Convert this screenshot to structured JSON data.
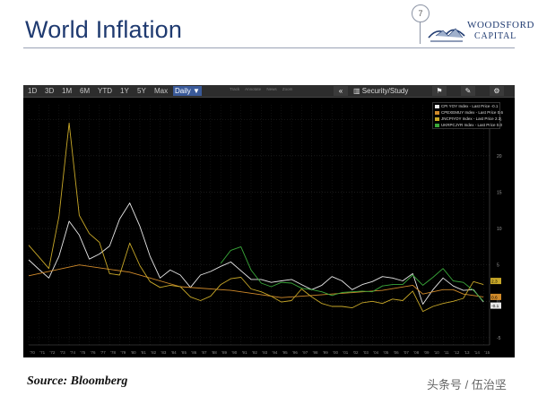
{
  "slide": {
    "title": "World Inflation",
    "page_number": "7",
    "logo_line1": "WOODSFORD",
    "logo_line2": "CAPITAL",
    "source": "Source: Bloomberg",
    "watermark": "头条号 / 伍治坚"
  },
  "toolbar": {
    "timeframes": [
      "1D",
      "3D",
      "1M",
      "6M",
      "YTD",
      "1Y",
      "5Y",
      "Max"
    ],
    "period": "Daily ▼",
    "tools": [
      "Track",
      "Annotate",
      "News",
      "Zoom"
    ],
    "collapse": "«",
    "security_study": "Security/Study",
    "icons": [
      "flag-icon",
      "edit-icon",
      "settings-icon"
    ]
  },
  "colors": {
    "white": "#e8e8e8",
    "orange": "#d08a2a",
    "yellow": "#c8a828",
    "green": "#3aa83a"
  },
  "chart_data": {
    "type": "line",
    "x_ticks": [
      "'70",
      "'71",
      "'72",
      "'73",
      "'74",
      "'75",
      "'76",
      "'77",
      "'78",
      "'79",
      "'80",
      "'81",
      "'82",
      "'83",
      "'84",
      "'85",
      "'86",
      "'87",
      "'88",
      "'89",
      "'90",
      "'91",
      "'92",
      "'93",
      "'94",
      "'95",
      "'96",
      "'97",
      "'98",
      "'99",
      "'00",
      "'01",
      "'02",
      "'03",
      "'04",
      "'05",
      "'06",
      "'07",
      "'08",
      "'09",
      "'10",
      "'11",
      "'12",
      "'13",
      "'14",
      "'15"
    ],
    "y_ticks": [
      25,
      20,
      15,
      10,
      5,
      0,
      -5
    ],
    "ylim": [
      -6,
      27
    ],
    "grid": true,
    "legend_position": "top-right",
    "end_labels": [
      "2.3",
      "0.6",
      "-0.1"
    ],
    "series": [
      {
        "name": "CPI YOY Index - Last Price -0.1",
        "color": "#e8e8e8",
        "x": [
          1970,
          1971,
          1972,
          1973,
          1974,
          1975,
          1976,
          1977,
          1978,
          1979,
          1980,
          1981,
          1982,
          1983,
          1984,
          1985,
          1986,
          1987,
          1988,
          1989,
          1990,
          1991,
          1992,
          1993,
          1994,
          1995,
          1996,
          1997,
          1998,
          1999,
          2000,
          2001,
          2002,
          2003,
          2004,
          2005,
          2006,
          2007,
          2008,
          2009,
          2010,
          2011,
          2012,
          2013,
          2014,
          2015
        ],
        "y": [
          5.7,
          4.4,
          3.2,
          6.2,
          11.0,
          9.1,
          5.8,
          6.5,
          7.6,
          11.3,
          13.5,
          10.3,
          6.2,
          3.2,
          4.3,
          3.6,
          1.9,
          3.6,
          4.1,
          4.8,
          5.4,
          4.2,
          3.0,
          3.0,
          2.6,
          2.8,
          3.0,
          2.3,
          1.6,
          2.2,
          3.4,
          2.8,
          1.6,
          2.3,
          2.7,
          3.4,
          3.2,
          2.8,
          3.8,
          -0.4,
          1.6,
          3.2,
          2.1,
          1.5,
          1.6,
          -0.1
        ]
      },
      {
        "name": "CPEXEMUY Index - Last Price 0.6",
        "color": "#d08a2a",
        "x": [
          1970,
          1975,
          1980,
          1985,
          1990,
          1995,
          2000,
          2005,
          2008,
          2009,
          2010,
          2011,
          2012,
          2013,
          2014,
          2015
        ],
        "y": [
          3.5,
          5.0,
          4.0,
          2.0,
          1.5,
          0.5,
          1.0,
          1.5,
          2.2,
          1.0,
          1.3,
          1.6,
          1.6,
          1.0,
          0.8,
          0.6
        ]
      },
      {
        "name": "JNCPIYOY Index - Last Price 2.3",
        "color": "#c8a828",
        "x": [
          1970,
          1971,
          1972,
          1973,
          1974,
          1975,
          1976,
          1977,
          1978,
          1979,
          1980,
          1981,
          1982,
          1983,
          1984,
          1985,
          1986,
          1987,
          1988,
          1989,
          1990,
          1991,
          1992,
          1993,
          1994,
          1995,
          1996,
          1997,
          1998,
          1999,
          2000,
          2001,
          2002,
          2003,
          2004,
          2005,
          2006,
          2007,
          2008,
          2009,
          2010,
          2011,
          2012,
          2013,
          2014,
          2015
        ],
        "y": [
          7.7,
          6.1,
          4.5,
          11.7,
          24.5,
          11.8,
          9.3,
          8.1,
          3.8,
          3.6,
          8.0,
          4.9,
          2.7,
          1.9,
          2.2,
          2.0,
          0.6,
          0.1,
          0.7,
          2.3,
          3.1,
          3.3,
          1.7,
          1.3,
          0.7,
          -0.1,
          0.1,
          1.7,
          0.6,
          -0.3,
          -0.7,
          -0.7,
          -0.9,
          -0.2,
          0.0,
          -0.3,
          0.3,
          0.1,
          1.4,
          -1.4,
          -0.7,
          -0.3,
          0.0,
          0.4,
          2.7,
          2.3
        ]
      },
      {
        "name": "UKRPCJYR Index - Last Price 0.0",
        "color": "#3aa83a",
        "x": [
          1989,
          1990,
          1991,
          1992,
          1993,
          1994,
          1995,
          1996,
          1997,
          1998,
          1999,
          2000,
          2001,
          2002,
          2003,
          2004,
          2005,
          2006,
          2007,
          2008,
          2009,
          2010,
          2011,
          2012,
          2013,
          2014,
          2015
        ],
        "y": [
          5.2,
          7.0,
          7.5,
          4.3,
          2.5,
          2.0,
          2.6,
          2.5,
          1.8,
          1.6,
          1.3,
          0.8,
          1.2,
          1.3,
          1.4,
          1.3,
          2.1,
          2.3,
          2.3,
          3.6,
          2.2,
          3.3,
          4.5,
          2.8,
          2.6,
          1.5,
          0.0
        ]
      }
    ]
  }
}
